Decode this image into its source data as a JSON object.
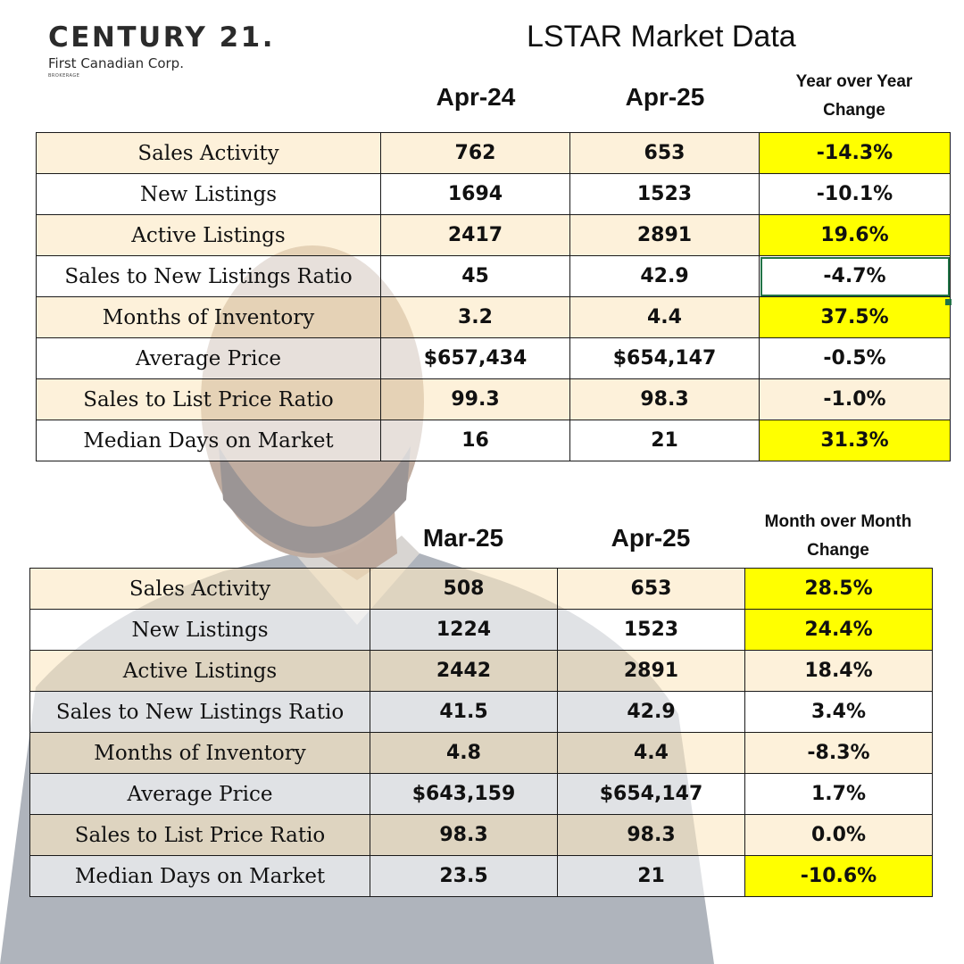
{
  "header": {
    "brand": "CENTURY 21.",
    "brand_sub": "First Canadian Corp.",
    "brand_tiny": "BROKERAGE",
    "title": "LSTAR Market Data"
  },
  "colors": {
    "highlight": "#ffff00",
    "row_tan": "#fbe8c4",
    "selection": "#217346"
  },
  "table_yoy": {
    "col1": "Apr-24",
    "col2": "Apr-25",
    "change_header_line1": "Year over Year",
    "change_header_line2": "Change",
    "rows": [
      {
        "label": "Sales Activity",
        "v1": "762",
        "v2": "653",
        "change": "-14.3%",
        "highlight": true
      },
      {
        "label": "New Listings",
        "v1": "1694",
        "v2": "1523",
        "change": "-10.1%",
        "highlight": false
      },
      {
        "label": "Active Listings",
        "v1": "2417",
        "v2": "2891",
        "change": "19.6%",
        "highlight": true
      },
      {
        "label": "Sales to New Listings Ratio",
        "v1": "45",
        "v2": "42.9",
        "change": "-4.7%",
        "highlight": false
      },
      {
        "label": "Months of Inventory",
        "v1": "3.2",
        "v2": "4.4",
        "change": "37.5%",
        "highlight": true
      },
      {
        "label": "Average Price",
        "v1": "$657,434",
        "v2": "$654,147",
        "change": "-0.5%",
        "highlight": false
      },
      {
        "label": "Sales to List Price Ratio",
        "v1": "99.3",
        "v2": "98.3",
        "change": "-1.0%",
        "highlight": false
      },
      {
        "label": "Median Days on Market",
        "v1": "16",
        "v2": "21",
        "change": "31.3%",
        "highlight": true
      }
    ]
  },
  "table_mom": {
    "col1": "Mar-25",
    "col2": "Apr-25",
    "change_header_line1": "Month over Month",
    "change_header_line2": "Change",
    "rows": [
      {
        "label": "Sales Activity",
        "v1": "508",
        "v2": "653",
        "change": "28.5%",
        "highlight": true
      },
      {
        "label": "New Listings",
        "v1": "1224",
        "v2": "1523",
        "change": "24.4%",
        "highlight": true
      },
      {
        "label": "Active Listings",
        "v1": "2442",
        "v2": "2891",
        "change": "18.4%",
        "highlight": false
      },
      {
        "label": "Sales to New Listings Ratio",
        "v1": "41.5",
        "v2": "42.9",
        "change": "3.4%",
        "highlight": false
      },
      {
        "label": "Months of Inventory",
        "v1": "4.8",
        "v2": "4.4",
        "change": "-8.3%",
        "highlight": false
      },
      {
        "label": "Average Price",
        "v1": "$643,159",
        "v2": "$654,147",
        "change": "1.7%",
        "highlight": false
      },
      {
        "label": "Sales to List Price Ratio",
        "v1": "98.3",
        "v2": "98.3",
        "change": "0.0%",
        "highlight": false
      },
      {
        "label": "Median Days on Market",
        "v1": "23.5",
        "v2": "21",
        "change": "-10.6%",
        "highlight": true
      }
    ]
  }
}
